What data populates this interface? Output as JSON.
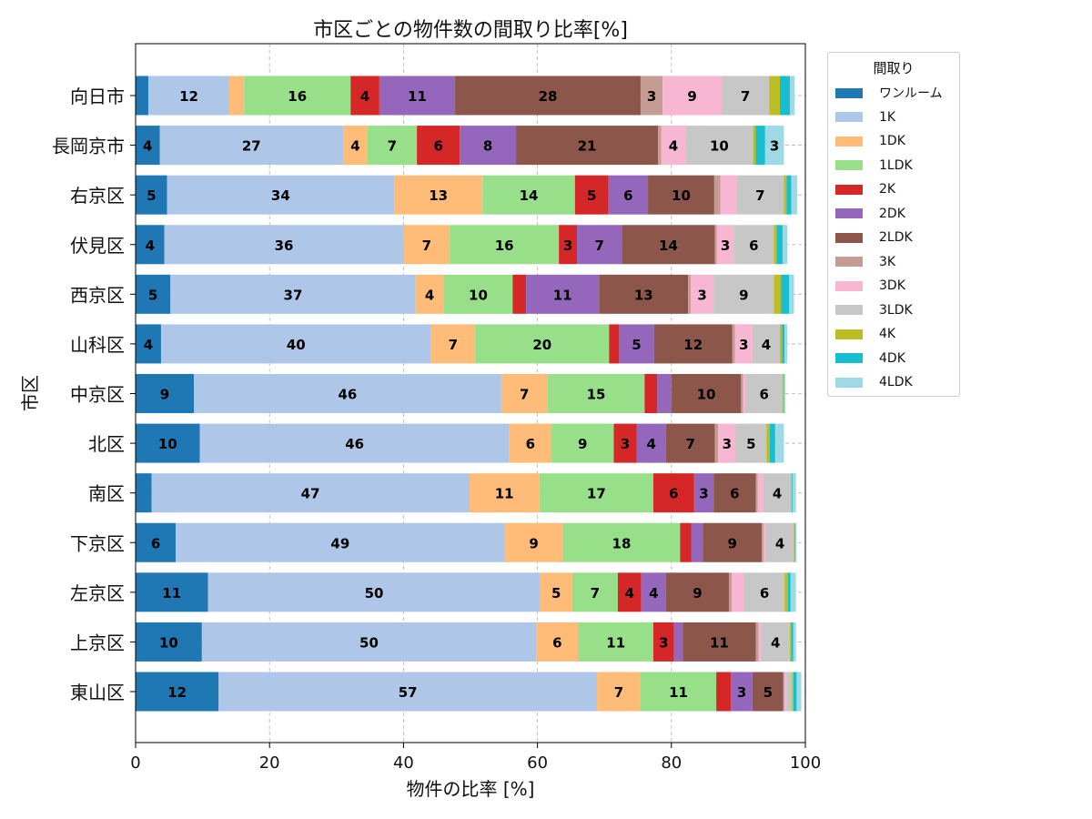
{
  "chart_data": {
    "type": "bar",
    "orientation": "horizontal",
    "stacked": true,
    "title": "市区ごとの物件数の間取り比率[%]",
    "xlabel": "物件の比率 [%]",
    "ylabel": "市区",
    "xlim": [
      0,
      100
    ],
    "xticks": [
      "0",
      "20",
      "40",
      "60",
      "80",
      "100"
    ],
    "grid": true,
    "legend_title": "間取り",
    "legend_position": "outside-top-right",
    "categories": [
      "向日市",
      "長岡京市",
      "右京区",
      "伏見区",
      "西京区",
      "山科区",
      "中京区",
      "北区",
      "南区",
      "下京区",
      "左京区",
      "上京区",
      "東山区"
    ],
    "series": [
      {
        "name": "ワンルーム",
        "color": "#1f77b4",
        "values": [
          1.9,
          3.6,
          4.7,
          4.3,
          5.2,
          3.8,
          8.7,
          9.6,
          2.4,
          6.0,
          10.8,
          9.9,
          12.4
        ]
      },
      {
        "name": "1K",
        "color": "#aec7e8",
        "values": [
          12.1,
          27.4,
          33.9,
          35.7,
          36.6,
          40.3,
          45.9,
          46.2,
          47.4,
          49.1,
          49.6,
          49.9,
          56.5
        ]
      },
      {
        "name": "1DK",
        "color": "#ffbb78",
        "values": [
          2.2,
          3.6,
          13.2,
          6.9,
          4.2,
          6.6,
          6.9,
          6.3,
          10.5,
          8.7,
          4.8,
          6.3,
          6.5
        ]
      },
      {
        "name": "1LDK",
        "color": "#98df8a",
        "values": [
          15.9,
          7.4,
          13.8,
          16.3,
          10.3,
          20.0,
          14.5,
          9.3,
          17.0,
          17.5,
          6.8,
          11.2,
          11.3
        ]
      },
      {
        "name": "2K",
        "color": "#d62728",
        "values": [
          4.3,
          6.4,
          5.0,
          2.7,
          2.0,
          1.5,
          1.9,
          3.4,
          6.1,
          1.7,
          3.5,
          3.1,
          2.2
        ]
      },
      {
        "name": "2DK",
        "color": "#9467bd",
        "values": [
          11.3,
          8.4,
          5.9,
          6.7,
          10.9,
          5.2,
          2.1,
          4.4,
          2.9,
          1.7,
          3.7,
          1.3,
          3.2
        ]
      },
      {
        "name": "2LDK",
        "color": "#8c564b",
        "values": [
          27.7,
          21.2,
          9.9,
          13.9,
          13.3,
          11.7,
          10.4,
          7.3,
          6.3,
          8.8,
          9.4,
          10.9,
          4.6
        ]
      },
      {
        "name": "3K",
        "color": "#c49c94",
        "values": [
          3.3,
          0.5,
          0.9,
          0.3,
          0.4,
          0.4,
          0.3,
          0.5,
          0.3,
          0.3,
          0.4,
          0.4,
          0.2
        ]
      },
      {
        "name": "3DK",
        "color": "#f7b6d2",
        "values": [
          8.8,
          3.6,
          2.4,
          2.5,
          3.4,
          2.6,
          0.4,
          2.6,
          0.8,
          0.3,
          1.9,
          0.4,
          0.3
        ]
      },
      {
        "name": "3LDK",
        "color": "#c7c7c7",
        "values": [
          7.1,
          10.1,
          7.1,
          6.0,
          9.0,
          4.1,
          5.5,
          4.6,
          4.2,
          4.2,
          6.0,
          4.3,
          0.8
        ]
      },
      {
        "name": "4K",
        "color": "#bcbd22",
        "values": [
          1.6,
          0.4,
          0.4,
          0.4,
          1.1,
          0.3,
          0.1,
          0.5,
          0.1,
          0.1,
          0.5,
          0.2,
          0.2
        ]
      },
      {
        "name": "4DK",
        "color": "#17becf",
        "values": [
          1.5,
          1.4,
          0.7,
          0.9,
          1.2,
          0.4,
          0.1,
          0.8,
          0.1,
          0.1,
          0.4,
          0.3,
          0.5
        ]
      },
      {
        "name": "4LDK",
        "color": "#9edae5",
        "values": [
          0.7,
          2.8,
          0.9,
          0.7,
          0.7,
          0.4,
          0.2,
          1.3,
          0.5,
          0.2,
          0.8,
          0.4,
          0.7
        ]
      }
    ]
  }
}
